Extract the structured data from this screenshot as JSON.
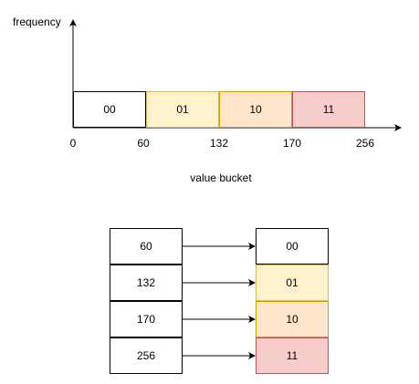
{
  "histogram": {
    "y_axis_label": "frequency",
    "x_axis_label": "value bucket",
    "x_ticks": [
      "0",
      "60",
      "132",
      "170",
      "256"
    ],
    "buckets": [
      {
        "code": "00",
        "from": 0,
        "to": 60,
        "fill": "#ffffff",
        "stroke": "#000000"
      },
      {
        "code": "01",
        "from": 60,
        "to": 132,
        "fill": "#fff2cc",
        "stroke": "#d6b656"
      },
      {
        "code": "10",
        "from": 132,
        "to": 170,
        "fill": "#ffe6cc",
        "stroke": "#d79b00"
      },
      {
        "code": "11",
        "from": 170,
        "to": 256,
        "fill": "#f8cecc",
        "stroke": "#b85450"
      }
    ]
  },
  "mapping": {
    "thresholds": [
      "60",
      "132",
      "170",
      "256"
    ],
    "codes": [
      "00",
      "01",
      "10",
      "11"
    ]
  }
}
